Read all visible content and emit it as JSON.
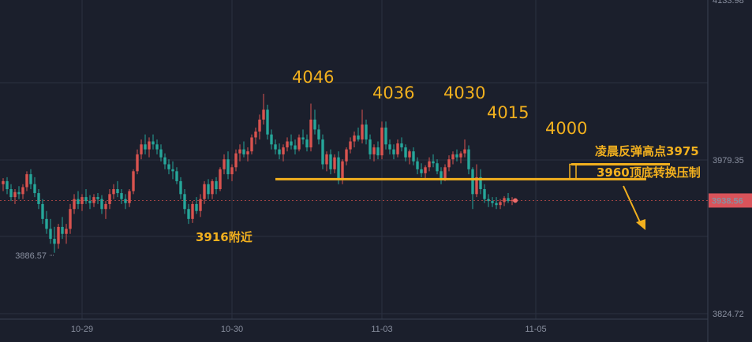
{
  "chart_data": {
    "type": "candlestick",
    "price_axis": {
      "ticks": [
        {
          "label": "3979.35",
          "value": 3979.35
        },
        {
          "label": "3824.72",
          "value": 3824.72
        }
      ],
      "top_label": "4133.98",
      "current_price": 3938.56,
      "current_price_label": "3938.56",
      "current_label_color": "#d9535a"
    },
    "time_axis": {
      "ticks": [
        {
          "label": "10-29",
          "index": 20
        },
        {
          "label": "10-30",
          "index": 58
        },
        {
          "label": "11-03",
          "index": 96
        },
        {
          "label": "11-05",
          "index": 135
        }
      ]
    },
    "low_marker": {
      "label": "3886.57",
      "value": 3886.57
    },
    "annotations": {
      "peaks": [
        {
          "label": "4046",
          "value": 4046
        },
        {
          "label": "4036",
          "value": 4036
        },
        {
          "label": "4030",
          "value": 4030
        },
        {
          "label": "4015",
          "value": 4015
        },
        {
          "label": "4000",
          "value": 4000
        }
      ],
      "support_label": "3916附近",
      "rebound_label": "凌晨反弹高点3975",
      "pressure_label": "3960顶底转换压制",
      "support_line_value": 3960,
      "rebound_line_value": 3975
    },
    "colors": {
      "up": "#d9534f",
      "down": "#26a69a",
      "annotation": "#f2b01e",
      "background": "#1b1f2c"
    },
    "candles": [
      [
        3955,
        3961,
        3948,
        3958
      ],
      [
        3958,
        3962,
        3945,
        3950
      ],
      [
        3950,
        3955,
        3938,
        3942
      ],
      [
        3942,
        3950,
        3935,
        3947
      ],
      [
        3947,
        3953,
        3940,
        3945
      ],
      [
        3945,
        3955,
        3940,
        3952
      ],
      [
        3952,
        3968,
        3948,
        3965
      ],
      [
        3965,
        3970,
        3950,
        3955
      ],
      [
        3955,
        3962,
        3942,
        3946
      ],
      [
        3946,
        3950,
        3930,
        3935
      ],
      [
        3935,
        3940,
        3915,
        3920
      ],
      [
        3920,
        3928,
        3905,
        3910
      ],
      [
        3910,
        3920,
        3895,
        3900
      ],
      [
        3900,
        3912,
        3886,
        3895
      ],
      [
        3895,
        3915,
        3890,
        3912
      ],
      [
        3912,
        3922,
        3900,
        3905
      ],
      [
        3905,
        3915,
        3895,
        3910
      ],
      [
        3910,
        3935,
        3905,
        3930
      ],
      [
        3930,
        3945,
        3925,
        3940
      ],
      [
        3940,
        3948,
        3930,
        3935
      ],
      [
        3935,
        3945,
        3928,
        3942
      ],
      [
        3942,
        3950,
        3935,
        3938
      ],
      [
        3938,
        3944,
        3930,
        3936
      ],
      [
        3936,
        3945,
        3932,
        3942
      ],
      [
        3942,
        3946,
        3935,
        3940
      ],
      [
        3940,
        3944,
        3925,
        3930
      ],
      [
        3930,
        3938,
        3920,
        3935
      ],
      [
        3935,
        3950,
        3930,
        3945
      ],
      [
        3945,
        3955,
        3940,
        3950
      ],
      [
        3950,
        3958,
        3942,
        3946
      ],
      [
        3946,
        3950,
        3935,
        3940
      ],
      [
        3940,
        3945,
        3930,
        3936
      ],
      [
        3936,
        3950,
        3932,
        3948
      ],
      [
        3948,
        3970,
        3945,
        3968
      ],
      [
        3968,
        3990,
        3965,
        3985
      ],
      [
        3985,
        4000,
        3980,
        3995
      ],
      [
        3995,
        4005,
        3985,
        3990
      ],
      [
        3990,
        4002,
        3982,
        3998
      ],
      [
        3998,
        4005,
        3990,
        3995
      ],
      [
        3995,
        4000,
        3985,
        3990
      ],
      [
        3990,
        3995,
        3978,
        3982
      ],
      [
        3982,
        3986,
        3970,
        3975
      ],
      [
        3975,
        3980,
        3965,
        3970
      ],
      [
        3970,
        3978,
        3960,
        3968
      ],
      [
        3968,
        3972,
        3955,
        3958
      ],
      [
        3958,
        3962,
        3940,
        3945
      ],
      [
        3945,
        3950,
        3925,
        3930
      ],
      [
        3930,
        3935,
        3915,
        3920
      ],
      [
        3920,
        3938,
        3916,
        3935
      ],
      [
        3935,
        3942,
        3925,
        3928
      ],
      [
        3928,
        3945,
        3922,
        3940
      ],
      [
        3940,
        3958,
        3935,
        3955
      ],
      [
        3955,
        3960,
        3940,
        3945
      ],
      [
        3945,
        3960,
        3940,
        3958
      ],
      [
        3958,
        3962,
        3945,
        3950
      ],
      [
        3950,
        3972,
        3948,
        3970
      ],
      [
        3970,
        3985,
        3965,
        3980
      ],
      [
        3980,
        3988,
        3960,
        3965
      ],
      [
        3965,
        3975,
        3958,
        3972
      ],
      [
        3972,
        3990,
        3968,
        3986
      ],
      [
        3986,
        3995,
        3978,
        3990
      ],
      [
        3990,
        3998,
        3982,
        3985
      ],
      [
        3985,
        3992,
        3978,
        3988
      ],
      [
        3988,
        4005,
        3985,
        4002
      ],
      [
        4002,
        4012,
        3995,
        4008
      ],
      [
        4008,
        4025,
        4000,
        4020
      ],
      [
        4020,
        4046,
        4015,
        4030
      ],
      [
        4030,
        4035,
        4000,
        4005
      ],
      [
        4005,
        4010,
        3990,
        3995
      ],
      [
        3995,
        4000,
        3985,
        3990
      ],
      [
        3990,
        3996,
        3980,
        3985
      ],
      [
        3985,
        3995,
        3978,
        3992
      ],
      [
        3992,
        4002,
        3988,
        3998
      ],
      [
        3998,
        4005,
        3990,
        3994
      ],
      [
        3994,
        4000,
        3985,
        3990
      ],
      [
        3990,
        4005,
        3988,
        4002
      ],
      [
        4002,
        4010,
        3995,
        4000
      ],
      [
        4000,
        4005,
        3988,
        3992
      ],
      [
        3992,
        4036,
        3988,
        4020
      ],
      [
        4020,
        4030,
        4005,
        4010
      ],
      [
        4010,
        4015,
        3995,
        4000
      ],
      [
        4000,
        4005,
        3970,
        3975
      ],
      [
        3975,
        3988,
        3968,
        3985
      ],
      [
        3985,
        3990,
        3965,
        3970
      ],
      [
        3970,
        3985,
        3966,
        3982
      ],
      [
        3982,
        3988,
        3955,
        3960
      ],
      [
        3960,
        3980,
        3955,
        3978
      ],
      [
        3978,
        3992,
        3974,
        3990
      ],
      [
        3990,
        4002,
        3986,
        3998
      ],
      [
        3998,
        4008,
        3992,
        4004
      ],
      [
        4004,
        4012,
        3998,
        4000
      ],
      [
        4000,
        4030,
        3996,
        4015
      ],
      [
        4015,
        4020,
        3995,
        4000
      ],
      [
        4000,
        4005,
        3980,
        3985
      ],
      [
        3985,
        3995,
        3978,
        3992
      ],
      [
        3992,
        3998,
        3980,
        3984
      ],
      [
        3984,
        4018,
        3980,
        4012
      ],
      [
        4012,
        4018,
        3990,
        3995
      ],
      [
        3995,
        4000,
        3985,
        3990
      ],
      [
        3990,
        3995,
        3980,
        3985
      ],
      [
        3985,
        4000,
        3982,
        3996
      ],
      [
        3996,
        4002,
        3988,
        3992
      ],
      [
        3992,
        3995,
        3978,
        3982
      ],
      [
        3982,
        3990,
        3975,
        3988
      ],
      [
        3988,
        3992,
        3974,
        3978
      ],
      [
        3978,
        3982,
        3965,
        3970
      ],
      [
        3970,
        3976,
        3962,
        3966
      ],
      [
        3966,
        3974,
        3960,
        3972
      ],
      [
        3972,
        3982,
        3968,
        3978
      ],
      [
        3978,
        3985,
        3972,
        3976
      ],
      [
        3976,
        3980,
        3965,
        3968
      ],
      [
        3968,
        3972,
        3955,
        3960
      ],
      [
        3960,
        3975,
        3958,
        3972
      ],
      [
        3972,
        3984,
        3968,
        3980
      ],
      [
        3980,
        3988,
        3975,
        3985
      ],
      [
        3985,
        3990,
        3978,
        3982
      ],
      [
        3982,
        3988,
        3976,
        3986
      ],
      [
        3986,
        4000,
        3982,
        3990
      ],
      [
        3990,
        3994,
        3965,
        3970
      ],
      [
        3970,
        3972,
        3930,
        3945
      ],
      [
        3945,
        3975,
        3942,
        3962
      ],
      [
        3962,
        3970,
        3945,
        3950
      ],
      [
        3950,
        3955,
        3936,
        3940
      ],
      [
        3940,
        3945,
        3932,
        3938
      ],
      [
        3938,
        3942,
        3932,
        3936
      ],
      [
        3936,
        3942,
        3930,
        3934
      ],
      [
        3934,
        3940,
        3930,
        3937
      ],
      [
        3937,
        3943,
        3933,
        3941
      ],
      [
        3941,
        3946,
        3936,
        3938
      ],
      [
        3938,
        3942,
        3934,
        3939
      ]
    ]
  }
}
